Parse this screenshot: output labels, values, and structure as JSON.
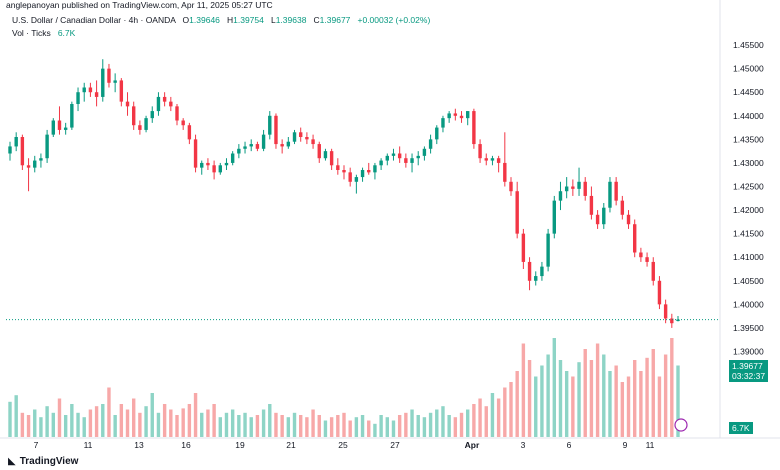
{
  "header": {
    "published_by": "anglepanoyan published on TradingView.com, Apr 11, 2025 05:27 UTC"
  },
  "legend": {
    "symbol": "U.S. Dollar / Canadian Dollar · 4h · OANDA",
    "o_label": "O",
    "o_value": "1.39646",
    "h_label": "H",
    "h_value": "1.39754",
    "l_label": "L",
    "l_value": "1.39638",
    "c_label": "C",
    "c_value": "1.39677",
    "change": "+0.00032 (+0.02%)",
    "vol_label": "Vol · Ticks",
    "vol_value": "6.7K"
  },
  "price_tag": {
    "value": "1.39677",
    "countdown": "03:32:37"
  },
  "vol_tag": {
    "value": "6.7K"
  },
  "brand": {
    "name": "TradingView",
    "icon": "tradingview-logo-icon"
  },
  "colors": {
    "up": "#089981",
    "down": "#F23645",
    "up_vol": "#8ED4C6",
    "down_vol": "#F7A8A8",
    "last_line": "#089981"
  },
  "chart_data": {
    "type": "candlestick",
    "title": "U.S. Dollar / Canadian Dollar · 4h · OANDA",
    "y_ticks": [
      "1.45500",
      "1.45000",
      "1.44500",
      "1.44000",
      "1.43500",
      "1.43000",
      "1.42500",
      "1.42000",
      "1.41500",
      "1.41000",
      "1.40500",
      "1.40000",
      "1.39500",
      "1.39000"
    ],
    "ylim": [
      1.3865,
      1.4565
    ],
    "x_ticks": [
      "7",
      "11",
      "13",
      "16",
      "19",
      "21",
      "25",
      "27",
      "Apr",
      "3",
      "6",
      "9",
      "11"
    ],
    "last_price": 1.39677,
    "candles": [
      [
        1.432,
        1.4345,
        1.4305,
        1.4335
      ],
      [
        1.4335,
        1.4365,
        1.4325,
        1.4355
      ],
      [
        1.4355,
        1.436,
        1.4285,
        1.4295
      ],
      [
        1.4295,
        1.431,
        1.424,
        1.429
      ],
      [
        1.429,
        1.4315,
        1.428,
        1.4305
      ],
      [
        1.4305,
        1.432,
        1.429,
        1.431
      ],
      [
        1.431,
        1.437,
        1.43,
        1.436
      ],
      [
        1.436,
        1.4395,
        1.4355,
        1.439
      ],
      [
        1.439,
        1.442,
        1.436,
        1.437
      ],
      [
        1.437,
        1.4385,
        1.436,
        1.4375
      ],
      [
        1.4375,
        1.443,
        1.437,
        1.4425
      ],
      [
        1.4425,
        1.446,
        1.441,
        1.445
      ],
      [
        1.445,
        1.447,
        1.443,
        1.446
      ],
      [
        1.446,
        1.447,
        1.444,
        1.445
      ],
      [
        1.445,
        1.4475,
        1.442,
        1.444
      ],
      [
        1.444,
        1.452,
        1.443,
        1.45
      ],
      [
        1.45,
        1.451,
        1.446,
        1.447
      ],
      [
        1.447,
        1.449,
        1.445,
        1.4475
      ],
      [
        1.4475,
        1.448,
        1.442,
        1.443
      ],
      [
        1.443,
        1.445,
        1.44,
        1.442
      ],
      [
        1.442,
        1.443,
        1.437,
        1.438
      ],
      [
        1.438,
        1.439,
        1.436,
        1.437
      ],
      [
        1.437,
        1.44,
        1.4365,
        1.4395
      ],
      [
        1.4395,
        1.442,
        1.4385,
        1.441
      ],
      [
        1.441,
        1.445,
        1.44,
        1.444
      ],
      [
        1.444,
        1.445,
        1.442,
        1.443
      ],
      [
        1.443,
        1.444,
        1.441,
        1.442
      ],
      [
        1.442,
        1.4425,
        1.438,
        1.439
      ],
      [
        1.439,
        1.4395,
        1.437,
        1.438
      ],
      [
        1.438,
        1.4385,
        1.434,
        1.435
      ],
      [
        1.435,
        1.436,
        1.428,
        1.429
      ],
      [
        1.429,
        1.4305,
        1.4275,
        1.43
      ],
      [
        1.43,
        1.431,
        1.4285,
        1.4295
      ],
      [
        1.4295,
        1.4305,
        1.4265,
        1.428
      ],
      [
        1.428,
        1.43,
        1.4275,
        1.4295
      ],
      [
        1.4295,
        1.431,
        1.4285,
        1.43
      ],
      [
        1.43,
        1.4325,
        1.4295,
        1.432
      ],
      [
        1.432,
        1.434,
        1.431,
        1.433
      ],
      [
        1.433,
        1.4345,
        1.432,
        1.4335
      ],
      [
        1.4335,
        1.435,
        1.4325,
        1.434
      ],
      [
        1.434,
        1.4345,
        1.4325,
        1.433
      ],
      [
        1.433,
        1.437,
        1.4325,
        1.436
      ],
      [
        1.436,
        1.441,
        1.435,
        1.44
      ],
      [
        1.44,
        1.4405,
        1.433,
        1.434
      ],
      [
        1.434,
        1.435,
        1.432,
        1.4335
      ],
      [
        1.4335,
        1.4355,
        1.433,
        1.4345
      ],
      [
        1.4345,
        1.437,
        1.434,
        1.4365
      ],
      [
        1.4365,
        1.4375,
        1.4345,
        1.4355
      ],
      [
        1.4355,
        1.4365,
        1.434,
        1.435
      ],
      [
        1.435,
        1.436,
        1.433,
        1.434
      ],
      [
        1.434,
        1.4345,
        1.43,
        1.431
      ],
      [
        1.431,
        1.433,
        1.4305,
        1.4325
      ],
      [
        1.4325,
        1.433,
        1.4285,
        1.4295
      ],
      [
        1.4295,
        1.431,
        1.4275,
        1.4285
      ],
      [
        1.4285,
        1.4295,
        1.4265,
        1.428
      ],
      [
        1.428,
        1.429,
        1.425,
        1.426
      ],
      [
        1.426,
        1.4275,
        1.4235,
        1.427
      ],
      [
        1.427,
        1.429,
        1.426,
        1.4285
      ],
      [
        1.4285,
        1.43,
        1.4275,
        1.428
      ],
      [
        1.428,
        1.43,
        1.4265,
        1.4295
      ],
      [
        1.4295,
        1.431,
        1.4285,
        1.4305
      ],
      [
        1.4305,
        1.432,
        1.4295,
        1.4315
      ],
      [
        1.4315,
        1.433,
        1.4305,
        1.432
      ],
      [
        1.432,
        1.4335,
        1.43,
        1.431
      ],
      [
        1.431,
        1.432,
        1.429,
        1.43
      ],
      [
        1.43,
        1.432,
        1.428,
        1.431
      ],
      [
        1.431,
        1.4325,
        1.4295,
        1.4315
      ],
      [
        1.4315,
        1.4335,
        1.4305,
        1.433
      ],
      [
        1.433,
        1.436,
        1.432,
        1.435
      ],
      [
        1.435,
        1.438,
        1.434,
        1.4375
      ],
      [
        1.4375,
        1.44,
        1.4365,
        1.4395
      ],
      [
        1.4395,
        1.441,
        1.4385,
        1.4405
      ],
      [
        1.4405,
        1.4415,
        1.439,
        1.44
      ],
      [
        1.44,
        1.441,
        1.4385,
        1.4395
      ],
      [
        1.4395,
        1.441,
        1.438,
        1.441
      ],
      [
        1.441,
        1.4415,
        1.433,
        1.434
      ],
      [
        1.434,
        1.435,
        1.43,
        1.431
      ],
      [
        1.431,
        1.432,
        1.4295,
        1.4305
      ],
      [
        1.4305,
        1.4315,
        1.4295,
        1.431
      ],
      [
        1.431,
        1.4315,
        1.428,
        1.43
      ],
      [
        1.43,
        1.4365,
        1.425,
        1.426
      ],
      [
        1.426,
        1.427,
        1.423,
        1.424
      ],
      [
        1.424,
        1.426,
        1.414,
        1.415
      ],
      [
        1.415,
        1.416,
        1.4075,
        1.409
      ],
      [
        1.409,
        1.41,
        1.403,
        1.405
      ],
      [
        1.405,
        1.407,
        1.404,
        1.406
      ],
      [
        1.406,
        1.409,
        1.405,
        1.408
      ],
      [
        1.408,
        1.416,
        1.407,
        1.415
      ],
      [
        1.415,
        1.423,
        1.414,
        1.422
      ],
      [
        1.422,
        1.426,
        1.42,
        1.424
      ],
      [
        1.424,
        1.427,
        1.4225,
        1.425
      ],
      [
        1.425,
        1.4265,
        1.423,
        1.4245
      ],
      [
        1.4245,
        1.429,
        1.423,
        1.426
      ],
      [
        1.426,
        1.427,
        1.422,
        1.423
      ],
      [
        1.423,
        1.425,
        1.418,
        1.419
      ],
      [
        1.419,
        1.42,
        1.416,
        1.417
      ],
      [
        1.417,
        1.4215,
        1.416,
        1.4205
      ],
      [
        1.4205,
        1.427,
        1.4195,
        1.426
      ],
      [
        1.426,
        1.427,
        1.421,
        1.422
      ],
      [
        1.422,
        1.423,
        1.418,
        1.419
      ],
      [
        1.419,
        1.42,
        1.416,
        1.417
      ],
      [
        1.417,
        1.418,
        1.41,
        1.411
      ],
      [
        1.411,
        1.412,
        1.409,
        1.41
      ],
      [
        1.41,
        1.411,
        1.408,
        1.409
      ],
      [
        1.409,
        1.41,
        1.404,
        1.405
      ],
      [
        1.405,
        1.406,
        1.399,
        1.4
      ],
      [
        1.4,
        1.401,
        1.396,
        1.397
      ],
      [
        1.397,
        1.398,
        1.395,
        1.396
      ],
      [
        1.39646,
        1.39754,
        1.39638,
        1.39677
      ]
    ],
    "volumes": [
      0.32,
      0.38,
      0.22,
      0.2,
      0.25,
      0.18,
      0.28,
      0.22,
      0.35,
      0.2,
      0.3,
      0.22,
      0.18,
      0.25,
      0.28,
      0.3,
      0.45,
      0.2,
      0.3,
      0.25,
      0.35,
      0.22,
      0.28,
      0.4,
      0.22,
      0.3,
      0.25,
      0.2,
      0.26,
      0.3,
      0.4,
      0.22,
      0.25,
      0.3,
      0.18,
      0.22,
      0.25,
      0.2,
      0.22,
      0.18,
      0.2,
      0.25,
      0.3,
      0.22,
      0.2,
      0.18,
      0.22,
      0.2,
      0.18,
      0.25,
      0.2,
      0.15,
      0.18,
      0.2,
      0.22,
      0.15,
      0.18,
      0.2,
      0.15,
      0.12,
      0.2,
      0.18,
      0.15,
      0.2,
      0.22,
      0.25,
      0.2,
      0.18,
      0.22,
      0.25,
      0.28,
      0.2,
      0.18,
      0.22,
      0.25,
      0.3,
      0.35,
      0.28,
      0.4,
      0.35,
      0.45,
      0.5,
      0.6,
      0.85,
      0.7,
      0.55,
      0.65,
      0.75,
      0.9,
      0.7,
      0.6,
      0.55,
      0.68,
      0.8,
      0.7,
      0.85,
      0.75,
      0.6,
      0.65,
      0.5,
      0.55,
      0.7,
      0.6,
      0.72,
      0.8,
      0.55,
      0.75,
      0.9,
      0.65
    ]
  }
}
